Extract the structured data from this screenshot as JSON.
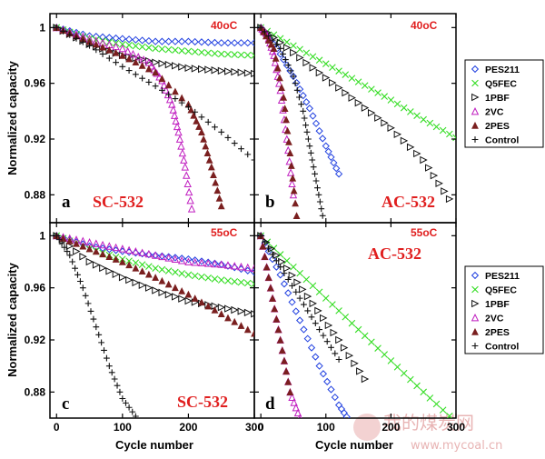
{
  "figure": {
    "xlabel": "Cycle number",
    "ylabel": "Normalized capacity",
    "x_ticks": [
      "0",
      "100",
      "200",
      "300"
    ],
    "y_ticks": [
      "0.88",
      "0.92",
      "0.96",
      "1"
    ],
    "xlim": [
      -10,
      300
    ],
    "ylim": [
      0.86,
      1.01
    ],
    "colors": {
      "PES211": "#1f3fe0",
      "Q5FEC": "#33dd22",
      "1PBF": "#111111",
      "2VC": "#c01ec0",
      "2PES": "#7a1f1f",
      "Control": "#111111",
      "annotation": "#e01f1f"
    },
    "legend_placement": "right of panels b and d",
    "watermark": {
      "text": "我的煤炭网",
      "url": "www.mycoal.cn"
    }
  },
  "chart_data": [
    {
      "type": "scatter",
      "panel_label": "a",
      "cell": "SC-532",
      "temperature": "40oC",
      "ylabel": "Normalized capacity",
      "series": [
        {
          "name": "PES211",
          "marker": "diamond",
          "x": [
            0,
            50,
            100,
            150,
            200,
            250,
            300
          ],
          "y": [
            1.0,
            0.994,
            0.992,
            0.99,
            0.99,
            0.989,
            0.989
          ]
        },
        {
          "name": "Q5FEC",
          "marker": "x",
          "x": [
            0,
            50,
            100,
            150,
            200,
            250,
            300
          ],
          "y": [
            1.0,
            0.992,
            0.988,
            0.985,
            0.983,
            0.981,
            0.98
          ]
        },
        {
          "name": "1PBF",
          "marker": "triangle-right",
          "x": [
            0,
            50,
            100,
            150,
            200,
            250,
            300
          ],
          "y": [
            1.0,
            0.988,
            0.98,
            0.975,
            0.971,
            0.969,
            0.967
          ]
        },
        {
          "name": "2VC",
          "marker": "triangle-up-open",
          "x": [
            0,
            50,
            100,
            140,
            160,
            175,
            185,
            195,
            205
          ],
          "y": [
            1.0,
            0.992,
            0.985,
            0.975,
            0.962,
            0.945,
            0.925,
            0.9,
            0.87
          ]
        },
        {
          "name": "2PES",
          "marker": "triangle-up-filled",
          "x": [
            0,
            50,
            100,
            150,
            200,
            220,
            235,
            250
          ],
          "y": [
            1.0,
            0.99,
            0.98,
            0.968,
            0.945,
            0.925,
            0.9,
            0.872
          ]
        },
        {
          "name": "Control",
          "marker": "plus",
          "x": [
            0,
            50,
            100,
            150,
            200,
            250,
            300
          ],
          "y": [
            1.0,
            0.987,
            0.972,
            0.958,
            0.943,
            0.925,
            0.905
          ]
        }
      ]
    },
    {
      "type": "scatter",
      "panel_label": "b",
      "cell": "AC-532",
      "temperature": "40oC",
      "series": [
        {
          "name": "PES211",
          "marker": "diamond",
          "x": [
            0,
            25,
            50,
            75,
            100,
            120
          ],
          "y": [
            1.0,
            0.985,
            0.965,
            0.942,
            0.915,
            0.895
          ]
        },
        {
          "name": "Q5FEC",
          "marker": "x",
          "x": [
            0,
            50,
            100,
            150,
            200,
            250,
            300
          ],
          "y": [
            1.0,
            0.987,
            0.974,
            0.961,
            0.948,
            0.934,
            0.921
          ]
        },
        {
          "name": "1PBF",
          "marker": "triangle-right",
          "x": [
            0,
            50,
            100,
            150,
            200,
            250,
            290
          ],
          "y": [
            1.0,
            0.982,
            0.964,
            0.946,
            0.928,
            0.905,
            0.877
          ]
        },
        {
          "name": "2VC",
          "marker": "triangle-up-open",
          "x": [
            0,
            10,
            20,
            30,
            40,
            50
          ],
          "y": [
            1.0,
            0.995,
            0.98,
            0.955,
            0.92,
            0.88
          ]
        },
        {
          "name": "2PES",
          "marker": "triangle-up-filled",
          "x": [
            0,
            20,
            35,
            45,
            55
          ],
          "y": [
            1.0,
            0.985,
            0.95,
            0.91,
            0.865
          ]
        },
        {
          "name": "Control",
          "marker": "plus",
          "x": [
            0,
            30,
            50,
            65,
            75,
            85,
            95
          ],
          "y": [
            1.0,
            0.985,
            0.965,
            0.94,
            0.915,
            0.89,
            0.865
          ]
        }
      ]
    },
    {
      "type": "scatter",
      "panel_label": "c",
      "cell": "SC-532",
      "temperature": "55oC",
      "series": [
        {
          "name": "PES211",
          "marker": "diamond",
          "x": [
            0,
            50,
            100,
            150,
            200,
            250,
            300
          ],
          "y": [
            1.0,
            0.992,
            0.988,
            0.985,
            0.982,
            0.978,
            0.972
          ]
        },
        {
          "name": "Q5FEC",
          "marker": "x",
          "x": [
            0,
            50,
            100,
            150,
            200,
            250,
            300
          ],
          "y": [
            1.0,
            0.99,
            0.982,
            0.975,
            0.97,
            0.966,
            0.963
          ]
        },
        {
          "name": "1PBF",
          "marker": "triangle-right",
          "x": [
            0,
            50,
            100,
            150,
            200,
            250,
            300
          ],
          "y": [
            1.0,
            0.98,
            0.968,
            0.958,
            0.95,
            0.945,
            0.94
          ]
        },
        {
          "name": "2VC",
          "marker": "triangle-up-open",
          "x": [
            0,
            50,
            100,
            150,
            200,
            250,
            300
          ],
          "y": [
            1.0,
            0.995,
            0.99,
            0.985,
            0.98,
            0.978,
            0.975
          ]
        },
        {
          "name": "2PES",
          "marker": "triangle-up-filled",
          "x": [
            0,
            50,
            100,
            150,
            200,
            250,
            300
          ],
          "y": [
            1.0,
            0.99,
            0.98,
            0.968,
            0.955,
            0.94,
            0.925
          ]
        },
        {
          "name": "Control",
          "marker": "plus",
          "x": [
            0,
            20,
            40,
            60,
            80,
            100,
            125
          ],
          "y": [
            1.0,
            0.985,
            0.96,
            0.93,
            0.9,
            0.875,
            0.858
          ]
        }
      ]
    },
    {
      "type": "scatter",
      "panel_label": "d",
      "cell": "AC-532",
      "temperature": "55oC",
      "series": [
        {
          "name": "PES211",
          "marker": "diamond",
          "x": [
            0,
            30,
            60,
            90,
            120,
            140
          ],
          "y": [
            1.0,
            0.97,
            0.935,
            0.9,
            0.87,
            0.855
          ]
        },
        {
          "name": "Q5FEC",
          "marker": "x",
          "x": [
            0,
            50,
            100,
            150,
            200,
            250,
            300
          ],
          "y": [
            1.0,
            0.976,
            0.952,
            0.928,
            0.904,
            0.88,
            0.857
          ]
        },
        {
          "name": "1PBF",
          "marker": "triangle-right",
          "x": [
            0,
            40,
            80,
            120,
            160
          ],
          "y": [
            1.0,
            0.975,
            0.948,
            0.92,
            0.89
          ]
        },
        {
          "name": "2VC",
          "marker": "triangle-up-open",
          "x": [
            0,
            15,
            30,
            45,
            60
          ],
          "y": [
            1.0,
            0.96,
            0.92,
            0.88,
            0.86
          ]
        },
        {
          "name": "2PES",
          "marker": "triangle-up-filled",
          "x": [
            0,
            15,
            30,
            45
          ],
          "y": [
            1.0,
            0.96,
            0.92,
            0.88
          ]
        },
        {
          "name": "Control",
          "marker": "plus",
          "x": [
            0,
            30,
            60,
            90,
            120
          ],
          "y": [
            1.0,
            0.976,
            0.952,
            0.928,
            0.905
          ]
        }
      ]
    }
  ],
  "legends": [
    {
      "entries": [
        "PES211",
        "Q5FEC",
        "1PBF",
        "2VC",
        "2PES",
        "Control"
      ]
    },
    {
      "entries": [
        "PES211",
        "Q5FEC",
        "1PBF",
        "2VC",
        "2PES",
        "Control"
      ]
    }
  ]
}
